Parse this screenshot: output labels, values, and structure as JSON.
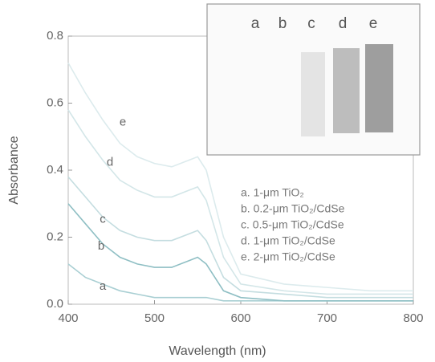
{
  "chart_data": {
    "type": "line",
    "x_label": "Wavelength (nm)",
    "y_label": "Absorbance",
    "x": [
      400,
      420,
      440,
      460,
      480,
      500,
      520,
      540,
      550,
      560,
      580,
      600,
      650,
      700,
      750,
      800
    ],
    "series": [
      {
        "name": "a. 1-μm TiO₂",
        "color": "#a9cfd3",
        "values": [
          0.12,
          0.08,
          0.06,
          0.04,
          0.03,
          0.02,
          0.02,
          0.02,
          0.02,
          0.02,
          0.01,
          0.01,
          0.01,
          0.01,
          0.01,
          0.01
        ]
      },
      {
        "name": "b. 0.2-μm TiO₂/CdSe",
        "color": "#8fbfc4",
        "values": [
          0.3,
          0.24,
          0.18,
          0.14,
          0.12,
          0.11,
          0.11,
          0.13,
          0.14,
          0.12,
          0.04,
          0.02,
          0.01,
          0.01,
          0.01,
          0.01
        ]
      },
      {
        "name": "c. 0.5-μm TiO₂/CdSe",
        "color": "#c4dde0",
        "values": [
          0.38,
          0.32,
          0.26,
          0.22,
          0.2,
          0.19,
          0.19,
          0.21,
          0.22,
          0.19,
          0.08,
          0.04,
          0.03,
          0.02,
          0.02,
          0.02
        ]
      },
      {
        "name": "d. 1-μm TiO₂/CdSe",
        "color": "#d3e6e8",
        "values": [
          0.58,
          0.5,
          0.43,
          0.37,
          0.34,
          0.32,
          0.32,
          0.34,
          0.35,
          0.31,
          0.14,
          0.06,
          0.04,
          0.03,
          0.03,
          0.03
        ]
      },
      {
        "name": "e. 2-μm TiO₂/CdSe",
        "color": "#dcebed",
        "values": [
          0.72,
          0.63,
          0.55,
          0.48,
          0.44,
          0.42,
          0.41,
          0.43,
          0.44,
          0.4,
          0.2,
          0.09,
          0.06,
          0.05,
          0.04,
          0.04
        ]
      }
    ],
    "curve_labels": [
      "a",
      "b",
      "c",
      "d",
      "e"
    ],
    "inset_labels": [
      "a",
      "b",
      "c",
      "d",
      "e"
    ],
    "xlim": [
      400,
      800
    ],
    "xticks": [
      400,
      500,
      600,
      700,
      800
    ],
    "ylim": [
      0,
      0.8
    ],
    "yticks": [
      {
        "value": 0,
        "label": "0.0"
      },
      0.2,
      0.4,
      0.6,
      0.8
    ],
    "grid": false
  }
}
